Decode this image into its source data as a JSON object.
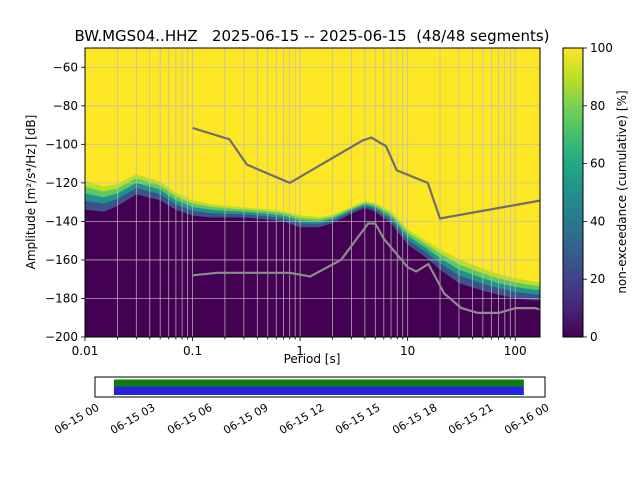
{
  "chart_data": {
    "type": "heatmap",
    "title": "BW.MGS04..HHZ   2025-06-15 -- 2025-06-15  (48/48 segments)",
    "xlabel": "Period [s]",
    "ylabel": "Amplitude [m²/s⁴/Hz] [dB]",
    "colorbar_label": "non-exceedance (cumulative) [%]",
    "x_scale": "log",
    "xlim": [
      0.01,
      170
    ],
    "ylim": [
      -200,
      -50
    ],
    "x_tick_values": [
      0.01,
      0.1,
      1,
      10,
      100
    ],
    "x_tick_labels": [
      "0.01",
      "0.1",
      "1",
      "10",
      "100"
    ],
    "y_ticks": [
      -200,
      -180,
      -160,
      -140,
      -120,
      -100,
      -80,
      -60
    ],
    "colorbar_ticks": [
      0,
      20,
      40,
      60,
      80,
      100
    ],
    "grid": true,
    "grid_color": "#bbbbbb",
    "field_top_color": "#fde725",
    "colormap_stops": [
      "#440154",
      "#482475",
      "#414487",
      "#355f8d",
      "#2a788e",
      "#21918c",
      "#22a884",
      "#44bf70",
      "#7ad151",
      "#bddf26",
      "#fde725"
    ],
    "psd_band": {
      "periods": [
        0.01,
        0.015,
        0.02,
        0.03,
        0.05,
        0.07,
        0.1,
        0.15,
        0.2,
        0.3,
        0.5,
        0.7,
        1,
        1.5,
        2,
        3,
        4,
        5,
        7,
        10,
        15,
        20,
        30,
        50,
        70,
        100,
        150,
        170
      ],
      "upper_db": [
        -117,
        -120,
        -119,
        -114,
        -118,
        -124,
        -128,
        -130,
        -131,
        -132,
        -133,
        -134,
        -136,
        -137,
        -136,
        -132,
        -129,
        -130,
        -134,
        -143,
        -149,
        -153,
        -158,
        -163,
        -166,
        -168,
        -170,
        -170
      ],
      "lower_db": [
        -134,
        -135,
        -132,
        -126,
        -129,
        -134,
        -137,
        -138,
        -138,
        -138,
        -139,
        -140,
        -143,
        -143,
        -141,
        -136,
        -133,
        -135,
        -141,
        -152,
        -159,
        -165,
        -172,
        -176,
        -178,
        -180,
        -181,
        -181
      ],
      "fractions": [
        0.12,
        0.3,
        0.5,
        0.72,
        1
      ],
      "colors": [
        "#bddf26",
        "#5ec962",
        "#21918c",
        "#3b528b",
        "#440154"
      ]
    },
    "high_noise_model": {
      "color": "#6e6e6e",
      "periods": [
        0.1,
        0.22,
        0.32,
        0.8,
        3.8,
        4.6,
        6.3,
        7.9,
        15.4,
        20,
        170
      ],
      "db": [
        -91.5,
        -97.4,
        -110.5,
        -120,
        -98,
        -96.5,
        -101,
        -113.5,
        -120,
        -138.5,
        -129.2
      ]
    },
    "low_noise_model": {
      "color": "#8d8d8d",
      "periods": [
        0.1,
        0.17,
        0.4,
        0.8,
        1.24,
        2.4,
        4.3,
        5,
        6,
        10,
        12,
        15.6,
        21.9,
        31.6,
        45,
        70,
        101,
        154,
        170
      ],
      "db": [
        -168,
        -166.7,
        -166.7,
        -166.7,
        -168.6,
        -160,
        -141.1,
        -141.1,
        -149,
        -163.8,
        -166,
        -162.1,
        -177.5,
        -185,
        -187.5,
        -187.5,
        -185,
        -185,
        -185.8
      ]
    }
  },
  "timeline": {
    "labels": [
      "06-15 00",
      "06-15 03",
      "06-15 06",
      "06-15 09",
      "06-15 12",
      "06-15 15",
      "06-15 18",
      "06-15 21",
      "06-16 00"
    ],
    "coverage": {
      "start_frac": 0.042,
      "end_frac": 0.953
    },
    "colors": {
      "top_bar": "#0c7c0c",
      "bottom_bar": "#2323dd",
      "background": "#ffffff",
      "border": "#000000"
    }
  }
}
